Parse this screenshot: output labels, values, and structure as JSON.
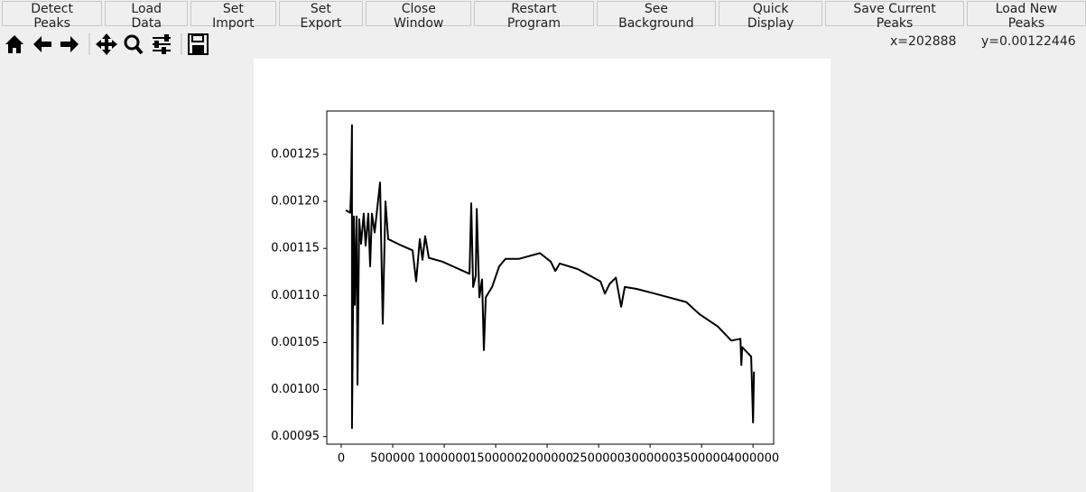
{
  "toolbar": {
    "buttons": [
      "Detect Peaks",
      "Load Data",
      "Set Import",
      "Set Export",
      "Close Window",
      "Restart Program",
      "See Background",
      "Quick Display",
      "Save Current Peaks",
      "Load New Peaks"
    ]
  },
  "status": {
    "x": "x=202888",
    "y": "y=0.00122446"
  },
  "chart_data": {
    "type": "line",
    "x": [
      44000,
      88000,
      96000,
      105000,
      105000,
      123000,
      132000,
      149000,
      158000,
      175000,
      193000,
      219000,
      237000,
      263000,
      281000,
      298000,
      325000,
      377000,
      404000,
      430000,
      456000,
      588000,
      693000,
      728000,
      763000,
      789000,
      816000,
      851000,
      982000,
      1246000,
      1263000,
      1281000,
      1307000,
      1316000,
      1342000,
      1368000,
      1386000,
      1404000,
      1465000,
      1535000,
      1596000,
      1728000,
      1930000,
      2035000,
      2079000,
      2123000,
      2298000,
      2518000,
      2561000,
      2605000,
      2667000,
      2719000,
      2754000,
      2868000,
      3044000,
      3351000,
      3482000,
      3658000,
      3789000,
      3877000,
      3886000,
      3895000,
      3982000,
      4000000,
      4009000
    ],
    "series": [
      {
        "color": "#000000",
        "values": [
          0.0011906,
          0.001188,
          0.001213,
          0.001281,
          0.000959,
          0.001184,
          0.00109,
          0.001184,
          0.001005,
          0.001181,
          0.001155,
          0.001187,
          0.001153,
          0.001187,
          0.001131,
          0.001187,
          0.001167,
          0.00122,
          0.00107,
          0.0012,
          0.00116,
          0.001153,
          0.001148,
          0.001115,
          0.00116,
          0.001138,
          0.001163,
          0.00114,
          0.001136,
          0.001123,
          0.001198,
          0.001109,
          0.001121,
          0.001192,
          0.001098,
          0.001117,
          0.001042,
          0.001098,
          0.001109,
          0.001131,
          0.001139,
          0.001139,
          0.001145,
          0.001136,
          0.001126,
          0.001134,
          0.001128,
          0.001115,
          0.001102,
          0.001112,
          0.001119,
          0.001088,
          0.001109,
          0.001107,
          0.001102,
          0.001093,
          0.00108,
          0.001067,
          0.001052,
          0.001054,
          0.001026,
          0.001045,
          0.001035,
          0.000965,
          0.001019
        ]
      }
    ],
    "xlim": [
      -140000,
      4200000
    ],
    "ylim": [
      0.000942,
      0.001296
    ],
    "xticks": [
      0,
      500000,
      1000000,
      1500000,
      2000000,
      2500000,
      3000000,
      3500000,
      4000000
    ],
    "yticks": [
      0.00095,
      {
        "value": 0.001,
        "label": "0.00100"
      },
      0.00105,
      {
        "value": 0.0011,
        "label": "0.00110"
      },
      0.00115,
      {
        "value": 0.0012,
        "label": "0.00120"
      },
      0.00125
    ]
  }
}
